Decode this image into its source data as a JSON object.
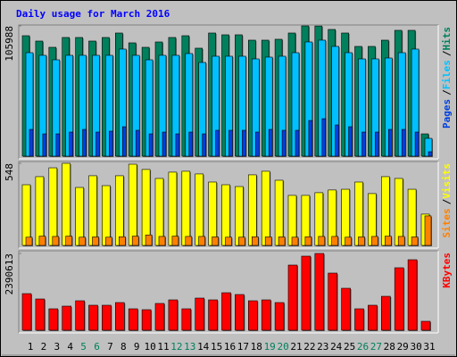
{
  "title": "Daily usage for March 2016",
  "chart_data": [
    {
      "type": "bar",
      "ylim": [
        0,
        105988
      ],
      "yticks": [
        105988
      ],
      "legend_separator": "/",
      "series": [
        {
          "name": "Hits",
          "color": "#00805c",
          "values": [
            98000,
            93650,
            88570,
            96560,
            96560,
            93650,
            96560,
            100190,
            92200,
            88570,
            92930,
            96560,
            98000,
            87850,
            100190,
            98740,
            98740,
            94380,
            94380,
            95110,
            100190,
            105988,
            105900,
            103090,
            100190,
            89300,
            89300,
            94380,
            102370,
            102370,
            18150
          ]
        },
        {
          "name": "Files",
          "color": "#00c0ff",
          "values": [
            84200,
            82040,
            78400,
            82040,
            82040,
            82040,
            82040,
            87120,
            82040,
            78400,
            82040,
            82040,
            83490,
            76230,
            81310,
            81310,
            81310,
            79130,
            80590,
            81310,
            84200,
            92930,
            94380,
            89300,
            84200,
            79130,
            79130,
            79860,
            84200,
            87120,
            14520
          ]
        },
        {
          "name": "Pages",
          "color": "#0040e0",
          "values": [
            21780,
            18150,
            18150,
            19600,
            21780,
            19600,
            20330,
            23960,
            21060,
            18150,
            19600,
            18150,
            19600,
            18150,
            21060,
            21060,
            21060,
            19600,
            21780,
            21060,
            21060,
            29040,
            30490,
            25410,
            23960,
            19600,
            19600,
            21780,
            21780,
            19600,
            3630
          ]
        }
      ]
    },
    {
      "type": "bar",
      "ylim": [
        0,
        548
      ],
      "yticks": [
        548
      ],
      "legend_separator": "/",
      "series": [
        {
          "name": "Visits",
          "color": "#ffff00",
          "values": [
            405,
            459,
            518,
            548,
            387,
            465,
            399,
            465,
            542,
            507,
            447,
            489,
            495,
            477,
            423,
            405,
            393,
            471,
            495,
            435,
            334,
            334,
            352,
            370,
            375,
            423,
            346,
            459,
            447,
            375,
            209
          ]
        },
        {
          "name": "Sites",
          "color": "#ff8000",
          "values": [
            55,
            62,
            60,
            62,
            55,
            57,
            55,
            58,
            62,
            70,
            60,
            62,
            60,
            60,
            57,
            55,
            55,
            58,
            57,
            57,
            55,
            58,
            60,
            60,
            55,
            57,
            60,
            62,
            60,
            57,
            197
          ]
        }
      ]
    },
    {
      "type": "bar",
      "ylim": [
        0,
        2390613
      ],
      "yticks": [
        2390613
      ],
      "categories": [
        "1",
        "2",
        "3",
        "4",
        "5",
        "6",
        "7",
        "8",
        "9",
        "10",
        "11",
        "12",
        "13",
        "14",
        "15",
        "16",
        "17",
        "18",
        "19",
        "20",
        "21",
        "22",
        "23",
        "24",
        "25",
        "26",
        "27",
        "28",
        "29",
        "30",
        "31"
      ],
      "category_colors": [
        "#000000",
        "#000000",
        "#000000",
        "#000000",
        "#00805c",
        "#00805c",
        "#000000",
        "#000000",
        "#000000",
        "#000000",
        "#000000",
        "#00805c",
        "#00805c",
        "#000000",
        "#000000",
        "#000000",
        "#000000",
        "#000000",
        "#00805c",
        "#00805c",
        "#000000",
        "#000000",
        "#000000",
        "#000000",
        "#000000",
        "#00805c",
        "#00805c",
        "#000000",
        "#000000",
        "#000000",
        "#000000"
      ],
      "series": [
        {
          "name": "KBytes",
          "color": "#ff0000",
          "values": [
            1139700,
            972900,
            667150,
            750550,
            917300,
            778300,
            778300,
            861700,
            667150,
            639350,
            833900,
            945100,
            667150,
            1000700,
            945100,
            1167500,
            1111900,
            917300,
            945100,
            861700,
            2029250,
            2307200,
            2390613,
            1779100,
            1306500,
            667150,
            778300,
            1056300,
            1945900,
            2196000,
            278000
          ]
        }
      ]
    }
  ]
}
